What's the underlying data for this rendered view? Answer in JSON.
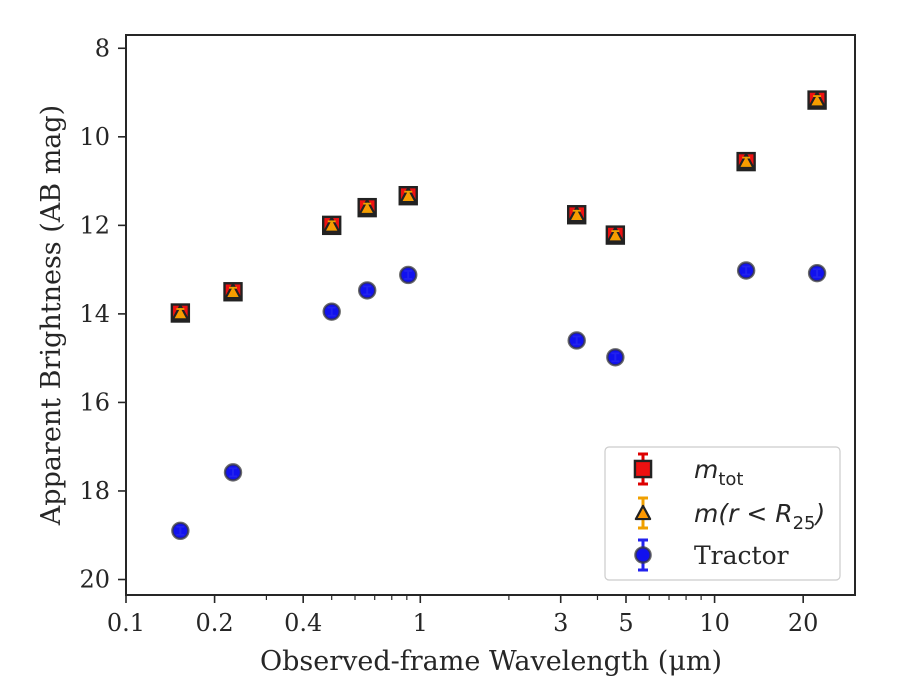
{
  "chart_data": {
    "type": "scatter",
    "xlabel": "Observed-frame Wavelength (μm)",
    "ylabel": "Apparent Brightness (AB mag)",
    "xscale": "log",
    "xlim": [
      0.1,
      30
    ],
    "ylim": [
      20.35,
      7.7
    ],
    "y_inverted": true,
    "grid": false,
    "legend_position": "lower-right",
    "x_major_ticks": [
      0.1,
      0.2,
      0.4,
      1,
      3,
      5,
      10,
      20
    ],
    "x_major_tick_labels": [
      "0.1",
      "0.2",
      "0.4",
      "1",
      "3",
      "5",
      "10",
      "20"
    ],
    "y_ticks": [
      8,
      10,
      12,
      14,
      16,
      18,
      20
    ],
    "y_tick_labels": [
      "8",
      "10",
      "12",
      "14",
      "16",
      "18",
      "20"
    ],
    "x": [
      0.153,
      0.231,
      0.5,
      0.66,
      0.91,
      3.4,
      4.6,
      12.8,
      22.3
    ],
    "series": [
      {
        "name": "m_tot",
        "legend_label": "m",
        "legend_sub": "tot",
        "marker": "square",
        "color": "#ee1111",
        "error_color": "#dd0000",
        "y": [
          13.98,
          13.5,
          12.0,
          11.6,
          11.33,
          11.76,
          12.22,
          10.56,
          9.17
        ]
      },
      {
        "name": "m(r < R_25)",
        "legend_label": "m(r < R",
        "legend_sub": "25",
        "legend_close": ")",
        "marker": "triangle",
        "color": "#ff9900",
        "error_color": "#f0a000",
        "y": [
          13.98,
          13.5,
          12.0,
          11.6,
          11.33,
          11.76,
          12.22,
          10.56,
          9.17
        ]
      },
      {
        "name": "Tractor",
        "legend_label": "Tractor",
        "marker": "circle",
        "color": "#1111ee",
        "error_color": "#2222ee",
        "y": [
          18.9,
          17.58,
          13.95,
          13.47,
          13.12,
          14.6,
          14.98,
          13.02,
          13.08
        ]
      }
    ]
  }
}
